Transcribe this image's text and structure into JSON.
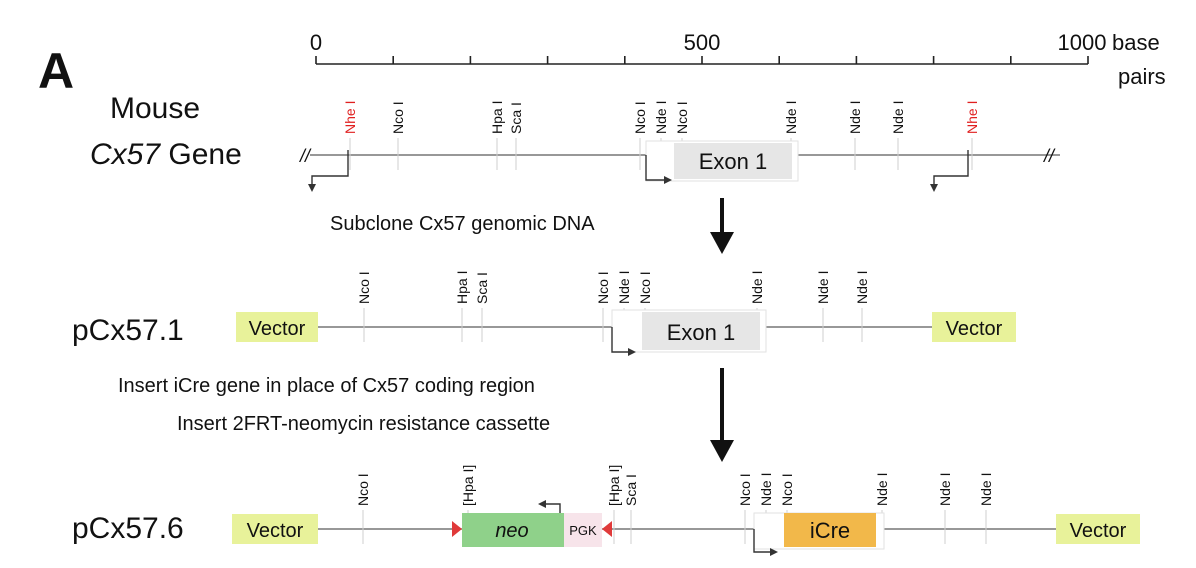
{
  "panel_label": "A",
  "scale": {
    "labels": [
      "0",
      "500",
      "1000"
    ],
    "unit_line1": "base",
    "unit_line2": "pairs"
  },
  "gene": {
    "title_line1": "Mouse",
    "title_gene": "Cx57",
    "title_suffix": " Gene",
    "exon_label": "Exon 1",
    "sites": [
      "Nhe I",
      "Nco I",
      "Hpa I",
      "Sca I",
      "Nco I",
      "Nde I",
      "Nco I",
      "Nde I",
      "Nde I",
      "Nde I",
      "Nhe I"
    ]
  },
  "step1": "Subclone Cx57 genomic DNA",
  "p1": {
    "title": "pCx57.1",
    "vector_label": "Vector",
    "exon_label": "Exon 1",
    "sites": [
      "Nco I",
      "Hpa I",
      "Sca I",
      "Nco I",
      "Nde I",
      "Nco I",
      "Nde I",
      "Nde I",
      "Nde I"
    ]
  },
  "step2_line1": "Insert iCre gene in place of Cx57 coding region",
  "step2_line2": "Insert 2FRT-neomycin resistance cassette",
  "p6": {
    "title": "pCx57.6",
    "vector_label": "Vector",
    "neo_label": "neo",
    "pgk_label": "PGK",
    "icre_label": "iCre",
    "sites": [
      "Nco I",
      "[Hpa I]",
      "[Hpa I]",
      "Sca I",
      "Nco I",
      "Nde I",
      "Nco I",
      "Nde I",
      "Nde I",
      "Nde I"
    ]
  },
  "colors": {
    "vector": "#e8f29a",
    "exon": "#e6e6e6",
    "neo": "#8fd18a",
    "pgk": "#f7e4ea",
    "icre": "#f2b84a",
    "frt": "#e03a3a",
    "nhe_site": "#e02020"
  }
}
